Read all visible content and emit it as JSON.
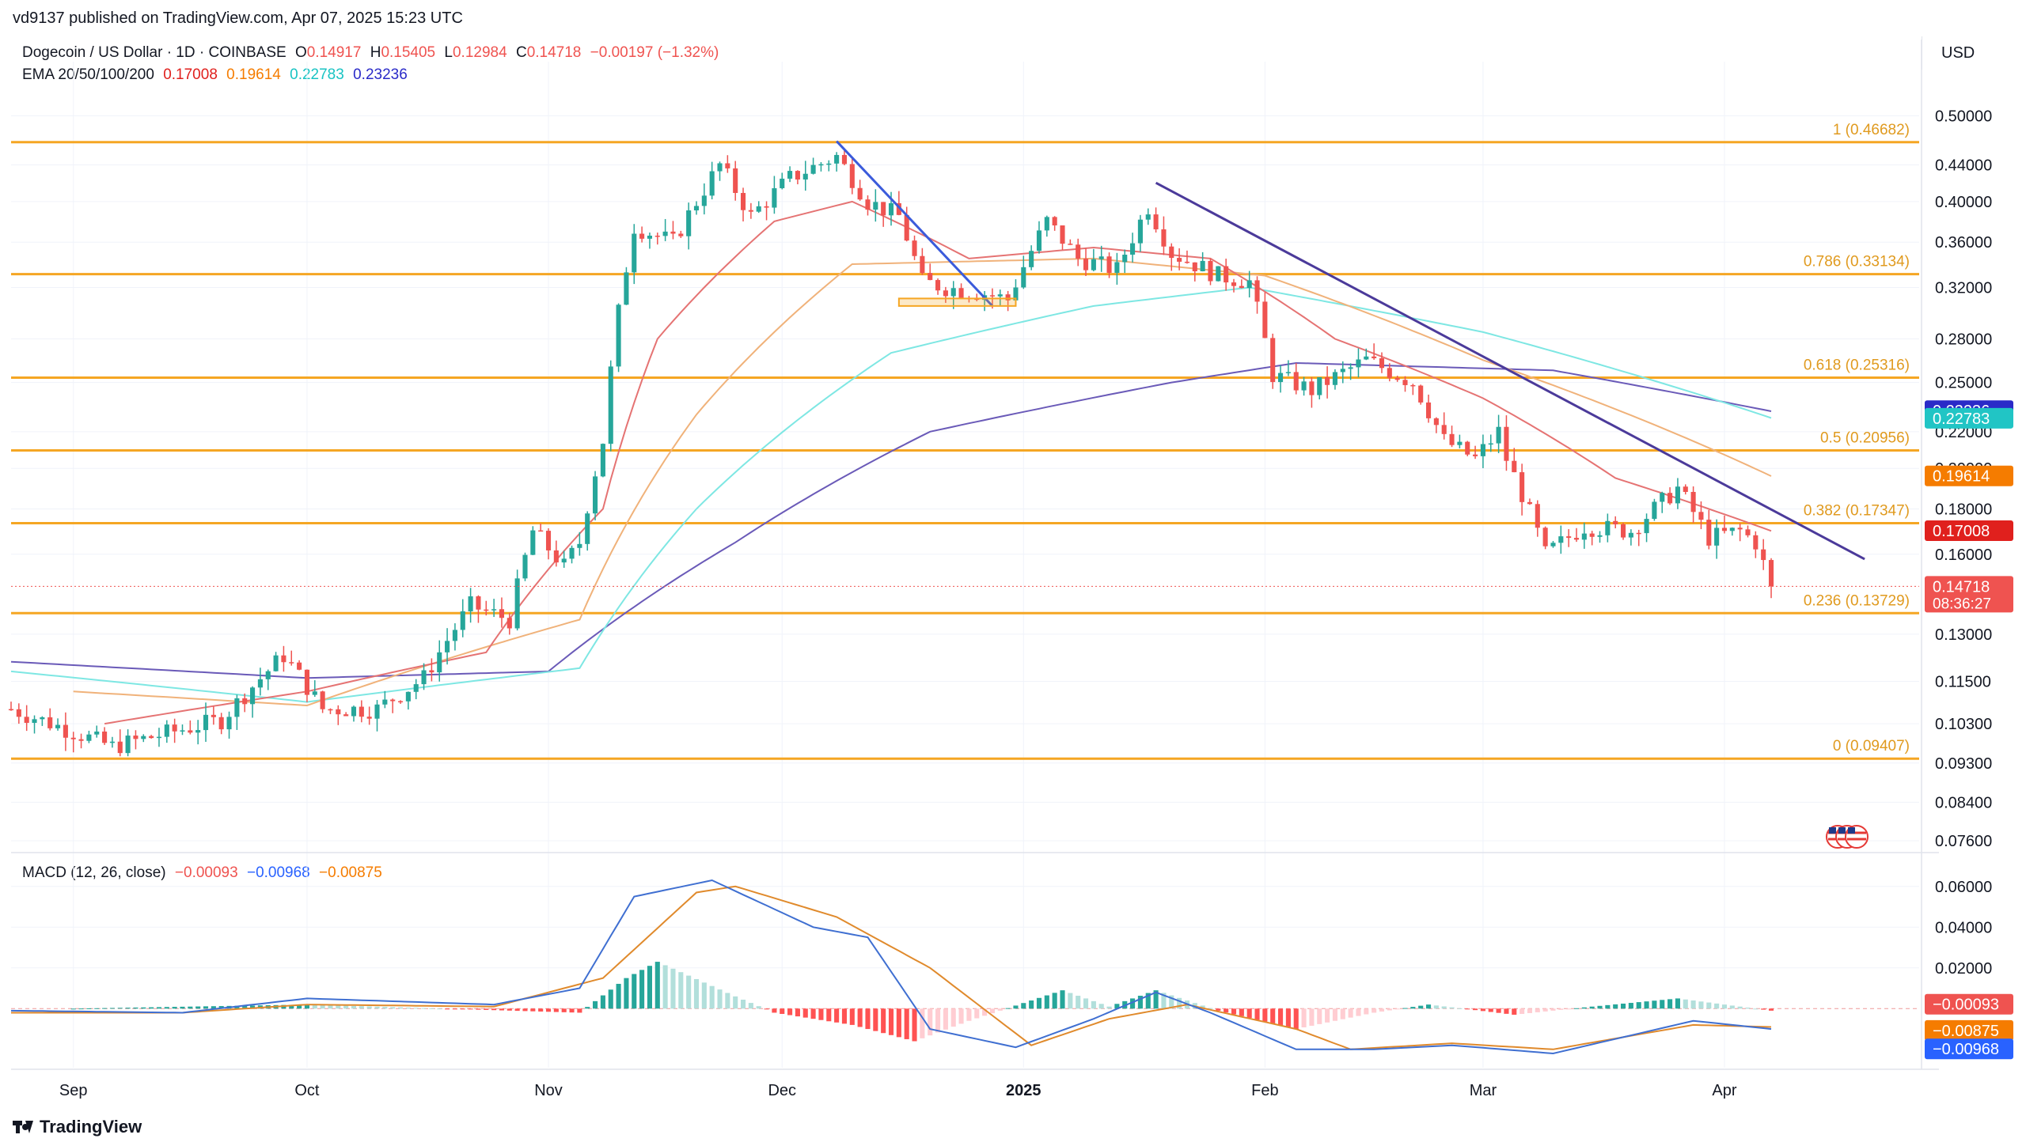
{
  "publisher_line": "vd9137 published on TradingView.com, Apr 07, 2025 15:23 UTC",
  "symbol": {
    "name": "Dogecoin / US Dollar · 1D · COINBASE",
    "o_label": "O",
    "o": "0.14917",
    "h_label": "H",
    "h": "0.15405",
    "l_label": "L",
    "l": "0.12984",
    "c_label": "C",
    "c": "0.14718",
    "change": "−0.00197 (−1.32%)"
  },
  "ema_legend": {
    "label": "EMA 20/50/100/200",
    "v20": "0.17008",
    "v50": "0.19614",
    "v100": "0.22783",
    "v200": "0.23236"
  },
  "macd_legend": {
    "label": "MACD (12, 26, close)",
    "hist": "−0.00093",
    "macd": "−0.00968",
    "signal": "−0.00875"
  },
  "currency": "USD",
  "footer_brand": "TradingView",
  "colors": {
    "up": "#26a69a",
    "down": "#ef5350",
    "fib": "#f5a623",
    "ema20": "#e57373",
    "ema50": "#f0b27a",
    "ema100": "#7ee7e3",
    "ema200": "#6a5ab8",
    "macd_line": "#3f6fd1",
    "signal_line": "#e08a2c"
  },
  "chart_data": {
    "type": "candlestick",
    "scale": "log",
    "price_axis_ticks": [
      "0.50000",
      "0.44000",
      "0.40000",
      "0.36000",
      "0.32000",
      "0.28000",
      "0.25000",
      "0.22000",
      "0.20000",
      "0.18000",
      "0.16000",
      "0.13000",
      "0.11500",
      "0.10300",
      "0.09300",
      "0.08400",
      "0.07600"
    ],
    "price_axis_values": [
      0.5,
      0.44,
      0.4,
      0.36,
      0.32,
      0.28,
      0.25,
      0.22,
      0.2,
      0.18,
      0.16,
      0.13,
      0.115,
      0.103,
      0.093,
      0.084,
      0.076
    ],
    "ylim": [
      0.074,
      0.53
    ],
    "time_labels": [
      {
        "label": "Sep",
        "date": "2024-09-01"
      },
      {
        "label": "Oct",
        "date": "2024-10-01"
      },
      {
        "label": "Nov",
        "date": "2024-11-01"
      },
      {
        "label": "Dec",
        "date": "2024-12-01"
      },
      {
        "label": "2025",
        "date": "2025-01-01"
      },
      {
        "label": "Feb",
        "date": "2025-02-01"
      },
      {
        "label": "Mar",
        "date": "2025-03-01"
      },
      {
        "label": "Apr",
        "date": "2025-04-01"
      }
    ],
    "x_range": [
      "2024-08-24",
      "2025-04-26"
    ],
    "fib_levels": [
      {
        "label": "1 (0.46682)",
        "value": 0.46682
      },
      {
        "label": "0.786 (0.33134)",
        "value": 0.33134
      },
      {
        "label": "0.618 (0.25316)",
        "value": 0.25316
      },
      {
        "label": "0.5 (0.20956)",
        "value": 0.20956
      },
      {
        "label": "0.382 (0.17347)",
        "value": 0.17347
      },
      {
        "label": "0.236 (0.13729)",
        "value": 0.13729
      },
      {
        "label": "0 (0.09407)",
        "value": 0.09407
      }
    ],
    "price_badges": [
      {
        "label": "0.23236",
        "value": 0.23236,
        "color": "#2a2ac8"
      },
      {
        "label": "0.22783",
        "value": 0.22783,
        "color": "#21c5c5"
      },
      {
        "label": "0.19614",
        "value": 0.19614,
        "color": "#f57c00"
      },
      {
        "label": "0.17008",
        "value": 0.17008,
        "color": "#e0201d"
      },
      {
        "label": "0.14718",
        "value": 0.14718,
        "color": "#ef5350",
        "sub": "08:36:27"
      }
    ],
    "last_price": 0.14718,
    "trendlines": [
      {
        "from": [
          "2024-12-08",
          0.468
        ],
        "to": [
          "2024-12-28",
          0.305
        ],
        "color": "#3b5bdb"
      },
      {
        "from": [
          "2025-01-18",
          0.42
        ],
        "to": [
          "2025-04-19",
          0.158
        ],
        "color": "#4b3a9a"
      }
    ],
    "support_box": {
      "from": "2024-12-16",
      "to": "2024-12-31",
      "low": 0.305,
      "high": 0.311
    },
    "close_path": [
      [
        "2024-08-24",
        0.107
      ],
      [
        "2024-09-06",
        0.097
      ],
      [
        "2024-09-10",
        0.099
      ],
      [
        "2024-09-20",
        0.104
      ],
      [
        "2024-09-28",
        0.123
      ],
      [
        "2024-10-03",
        0.107
      ],
      [
        "2024-10-10",
        0.107
      ],
      [
        "2024-10-16",
        0.116
      ],
      [
        "2024-10-22",
        0.14
      ],
      [
        "2024-10-27",
        0.135
      ],
      [
        "2024-10-30",
        0.17
      ],
      [
        "2024-11-03",
        0.155
      ],
      [
        "2024-11-05",
        0.165
      ],
      [
        "2024-11-08",
        0.215
      ],
      [
        "2024-11-10",
        0.3
      ],
      [
        "2024-11-12",
        0.375
      ],
      [
        "2024-11-17",
        0.36
      ],
      [
        "2024-11-23",
        0.44
      ],
      [
        "2024-11-27",
        0.385
      ],
      [
        "2024-12-02",
        0.425
      ],
      [
        "2024-12-08",
        0.45
      ],
      [
        "2024-12-12",
        0.4
      ],
      [
        "2024-12-16",
        0.385
      ],
      [
        "2024-12-19",
        0.325
      ],
      [
        "2024-12-22",
        0.32
      ],
      [
        "2024-12-27",
        0.315
      ],
      [
        "2024-12-30",
        0.31
      ],
      [
        "2025-01-04",
        0.38
      ],
      [
        "2025-01-08",
        0.345
      ],
      [
        "2025-01-13",
        0.335
      ],
      [
        "2025-01-17",
        0.395
      ],
      [
        "2025-01-20",
        0.35
      ],
      [
        "2025-01-26",
        0.33
      ],
      [
        "2025-01-30",
        0.325
      ],
      [
        "2025-02-02",
        0.255
      ],
      [
        "2025-02-07",
        0.245
      ],
      [
        "2025-02-14",
        0.265
      ],
      [
        "2025-02-20",
        0.25
      ],
      [
        "2025-02-24",
        0.215
      ],
      [
        "2025-02-28",
        0.205
      ],
      [
        "2025-03-03",
        0.22
      ],
      [
        "2025-03-04",
        0.205
      ],
      [
        "2025-03-09",
        0.16
      ],
      [
        "2025-03-14",
        0.172
      ],
      [
        "2025-03-20",
        0.17
      ],
      [
        "2025-03-26",
        0.19
      ],
      [
        "2025-03-30",
        0.167
      ],
      [
        "2025-04-03",
        0.17
      ],
      [
        "2025-04-05",
        0.165
      ],
      [
        "2025-04-07",
        0.147
      ]
    ],
    "ema_paths": {
      "ema20": [
        [
          "2024-09-05",
          0.103
        ],
        [
          "2024-10-01",
          0.112
        ],
        [
          "2024-10-24",
          0.124
        ],
        [
          "2024-11-08",
          0.18
        ],
        [
          "2024-11-15",
          0.28
        ],
        [
          "2024-11-30",
          0.38
        ],
        [
          "2024-12-10",
          0.4
        ],
        [
          "2024-12-25",
          0.345
        ],
        [
          "2025-01-10",
          0.355
        ],
        [
          "2025-01-25",
          0.345
        ],
        [
          "2025-02-10",
          0.28
        ],
        [
          "2025-03-01",
          0.24
        ],
        [
          "2025-03-18",
          0.195
        ],
        [
          "2025-04-07",
          0.17
        ]
      ],
      "ema50": [
        [
          "2024-09-01",
          0.112
        ],
        [
          "2024-10-01",
          0.108
        ],
        [
          "2024-11-05",
          0.135
        ],
        [
          "2024-11-20",
          0.23
        ],
        [
          "2024-12-10",
          0.34
        ],
        [
          "2025-01-10",
          0.345
        ],
        [
          "2025-02-01",
          0.33
        ],
        [
          "2025-03-01",
          0.265
        ],
        [
          "2025-04-07",
          0.196
        ]
      ],
      "ema100": [
        [
          "2024-08-24",
          0.118
        ],
        [
          "2024-10-01",
          0.109
        ],
        [
          "2024-11-05",
          0.119
        ],
        [
          "2024-11-20",
          0.18
        ],
        [
          "2024-12-15",
          0.27
        ],
        [
          "2025-01-10",
          0.305
        ],
        [
          "2025-01-30",
          0.32
        ],
        [
          "2025-03-01",
          0.285
        ],
        [
          "2025-04-07",
          0.228
        ]
      ],
      "ema200": [
        [
          "2024-08-24",
          0.121
        ],
        [
          "2024-10-01",
          0.116
        ],
        [
          "2024-11-01",
          0.118
        ],
        [
          "2024-11-25",
          0.165
        ],
        [
          "2024-12-20",
          0.22
        ],
        [
          "2025-01-20",
          0.25
        ],
        [
          "2025-02-05",
          0.263
        ],
        [
          "2025-03-10",
          0.258
        ],
        [
          "2025-04-07",
          0.232
        ]
      ]
    },
    "macd": {
      "axis_ticks": [
        "0.06000",
        "0.04000",
        "0.02000"
      ],
      "axis_values": [
        0.06,
        0.04,
        0.02
      ],
      "ylim": [
        -0.029,
        0.07
      ],
      "badges": [
        {
          "label": "−0.00093",
          "value": -0.00093,
          "color": "#ef5350"
        },
        {
          "label": "−0.00875",
          "value": -0.00875,
          "color": "#f57c00"
        },
        {
          "label": "−0.00968",
          "value": -0.00968,
          "color": "#2962ff"
        }
      ],
      "macd_line": [
        [
          "2024-08-24",
          -0.001
        ],
        [
          "2024-09-15",
          -0.002
        ],
        [
          "2024-10-01",
          0.005
        ],
        [
          "2024-10-25",
          0.002
        ],
        [
          "2024-11-05",
          0.01
        ],
        [
          "2024-11-12",
          0.055
        ],
        [
          "2024-11-22",
          0.063
        ],
        [
          "2024-12-05",
          0.04
        ],
        [
          "2024-12-12",
          0.035
        ],
        [
          "2024-12-20",
          -0.01
        ],
        [
          "2024-12-31",
          -0.019
        ],
        [
          "2025-01-10",
          -0.005
        ],
        [
          "2025-01-18",
          0.008
        ],
        [
          "2025-01-25",
          -0.002
        ],
        [
          "2025-02-05",
          -0.02
        ],
        [
          "2025-02-15",
          -0.02
        ],
        [
          "2025-02-25",
          -0.018
        ],
        [
          "2025-03-10",
          -0.022
        ],
        [
          "2025-03-28",
          -0.006
        ],
        [
          "2025-04-07",
          -0.01
        ]
      ],
      "signal_line": [
        [
          "2024-08-24",
          -0.002
        ],
        [
          "2024-09-15",
          -0.002
        ],
        [
          "2024-10-01",
          0.002
        ],
        [
          "2024-10-25",
          0.001
        ],
        [
          "2024-11-08",
          0.015
        ],
        [
          "2024-11-20",
          0.057
        ],
        [
          "2024-11-25",
          0.06
        ],
        [
          "2024-12-08",
          0.045
        ],
        [
          "2024-12-20",
          0.02
        ],
        [
          "2025-01-02",
          -0.018
        ],
        [
          "2025-01-12",
          -0.005
        ],
        [
          "2025-01-22",
          0.002
        ],
        [
          "2025-02-05",
          -0.01
        ],
        [
          "2025-02-12",
          -0.02
        ],
        [
          "2025-02-25",
          -0.017
        ],
        [
          "2025-03-10",
          -0.02
        ],
        [
          "2025-03-28",
          -0.008
        ],
        [
          "2025-04-07",
          -0.009
        ]
      ],
      "histogram_path": [
        [
          "2024-09-01",
          0.0
        ],
        [
          "2024-10-01",
          0.002
        ],
        [
          "2024-11-05",
          -0.002
        ],
        [
          "2024-11-11",
          0.015
        ],
        [
          "2024-11-15",
          0.023
        ],
        [
          "2024-11-25",
          0.006
        ],
        [
          "2024-11-30",
          -0.002
        ],
        [
          "2024-12-10",
          -0.008
        ],
        [
          "2024-12-18",
          -0.016
        ],
        [
          "2024-12-25",
          -0.006
        ],
        [
          "2025-01-06",
          0.009
        ],
        [
          "2025-01-12",
          0.001
        ],
        [
          "2025-01-18",
          0.009
        ],
        [
          "2025-01-26",
          -0.001
        ],
        [
          "2025-02-05",
          -0.01
        ],
        [
          "2025-02-15",
          -0.002
        ],
        [
          "2025-02-22",
          0.002
        ],
        [
          "2025-03-05",
          -0.003
        ],
        [
          "2025-03-15",
          0.001
        ],
        [
          "2025-03-26",
          0.005
        ],
        [
          "2025-04-07",
          -0.001
        ]
      ]
    }
  }
}
